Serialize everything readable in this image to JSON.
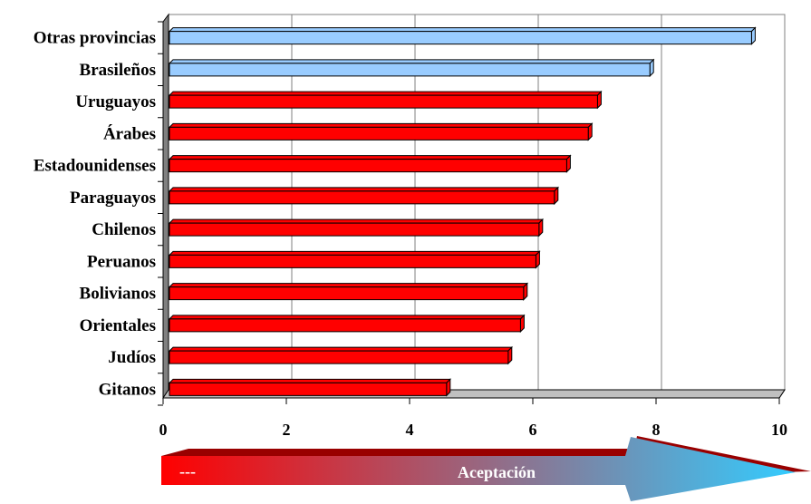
{
  "chart_data": {
    "type": "bar",
    "orientation": "horizontal",
    "categories": [
      "Otras provincias",
      "Brasileños",
      "Uruguayos",
      "Árabes",
      "Estadounidenses",
      "Paraguayos",
      "Chilenos",
      "Peruanos",
      "Bolivianos",
      "Orientales",
      "Judíos",
      "Gitanos"
    ],
    "values": [
      9.55,
      7.9,
      7.05,
      6.9,
      6.55,
      6.35,
      6.1,
      6.05,
      5.85,
      5.8,
      5.6,
      4.6
    ],
    "xlim": [
      0,
      10
    ],
    "xticks": [
      0,
      2,
      4,
      6,
      8,
      10
    ],
    "grid": true,
    "colors": {
      "highlight": "#99ccff",
      "default": "#ff0000",
      "highlight_categories": [
        "Otras provincias",
        "Brasileños"
      ]
    }
  },
  "arrow": {
    "left_text": "---",
    "right_text": "Aceptación",
    "color_start": "#ff0000",
    "color_end": "#33ccff",
    "top_color": "#990000"
  }
}
